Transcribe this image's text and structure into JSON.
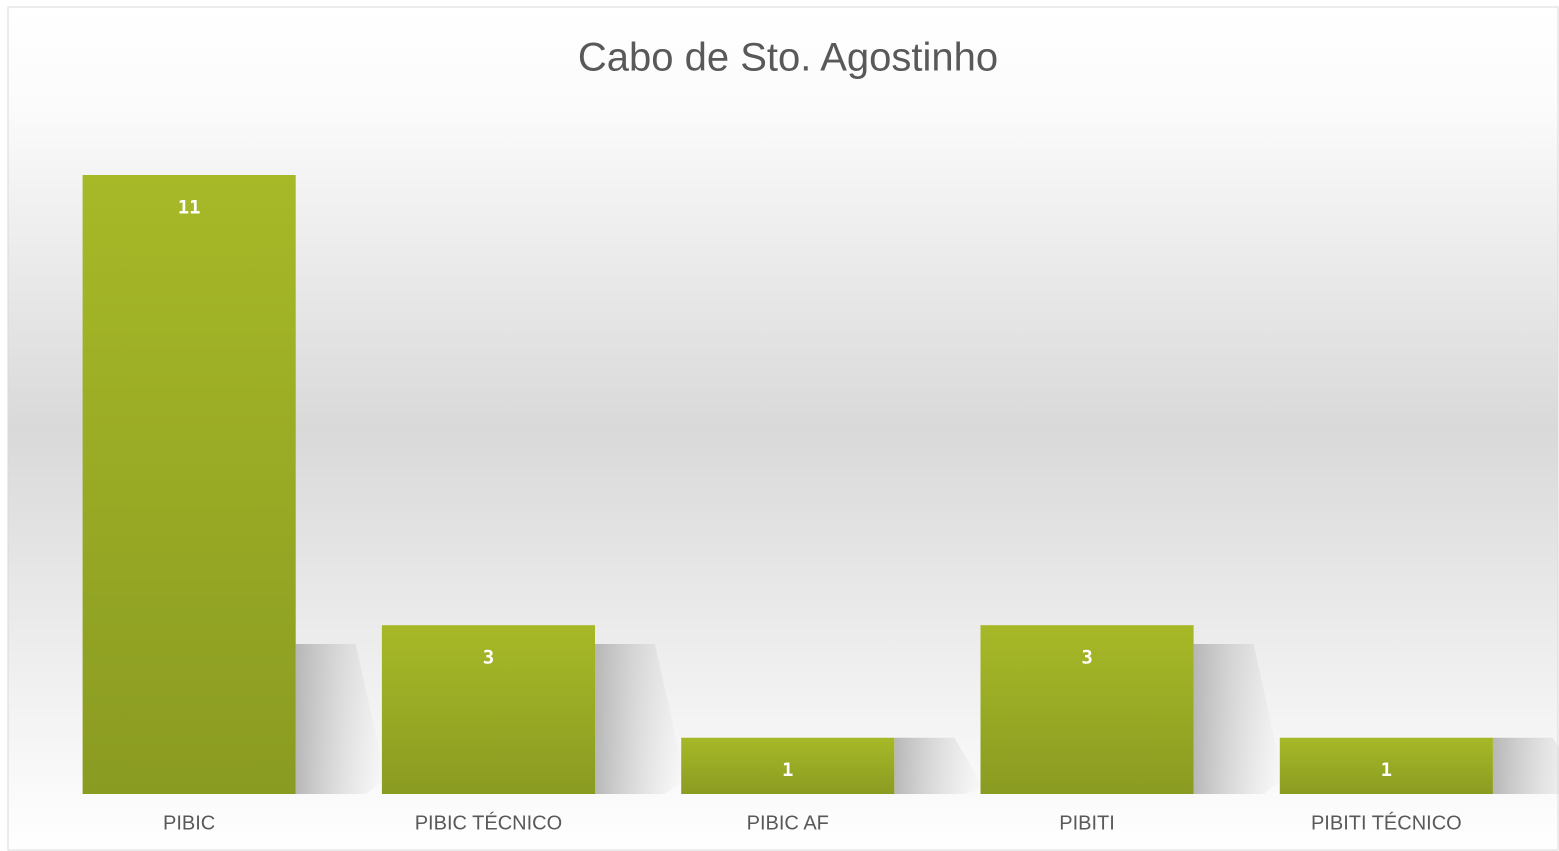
{
  "chart_data": {
    "type": "bar",
    "title": "Cabo de Sto. Agostinho",
    "categories": [
      "PIBIC",
      "PIBIC TÉCNICO",
      "PIBIC AF",
      "PIBITI",
      "PIBITI TÉCNICO"
    ],
    "values": [
      11,
      3,
      1,
      3,
      1
    ],
    "color": "#9aad25"
  }
}
